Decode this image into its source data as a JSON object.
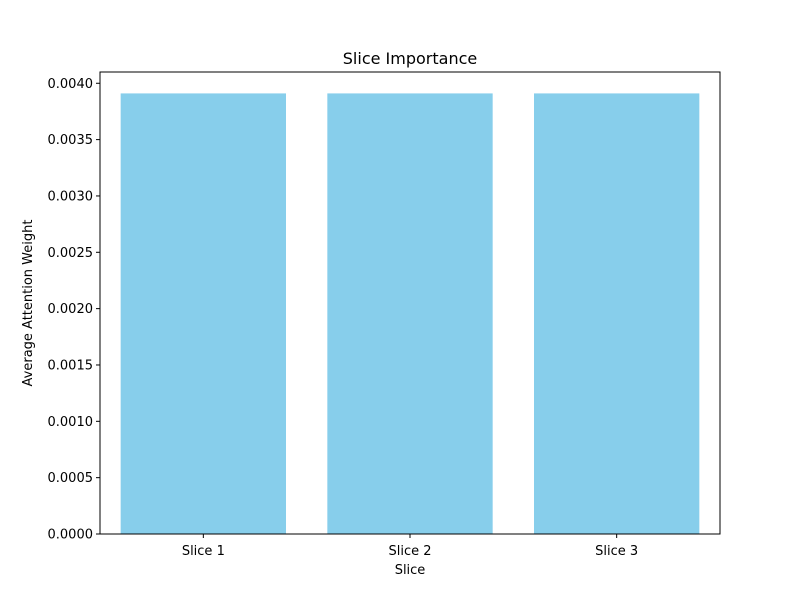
{
  "chart_data": {
    "type": "bar",
    "title": "Slice Importance",
    "xlabel": "Slice",
    "ylabel": "Average Attention Weight",
    "categories": [
      "Slice 1",
      "Slice 2",
      "Slice 3"
    ],
    "values": [
      0.00391,
      0.00391,
      0.00391
    ],
    "ylim": [
      0,
      0.0041
    ],
    "yticks": [
      "0.0000",
      "0.0005",
      "0.0010",
      "0.0015",
      "0.0020",
      "0.0025",
      "0.0030",
      "0.0035",
      "0.0040"
    ],
    "grid": false,
    "bar_color": "#87ceeb"
  }
}
